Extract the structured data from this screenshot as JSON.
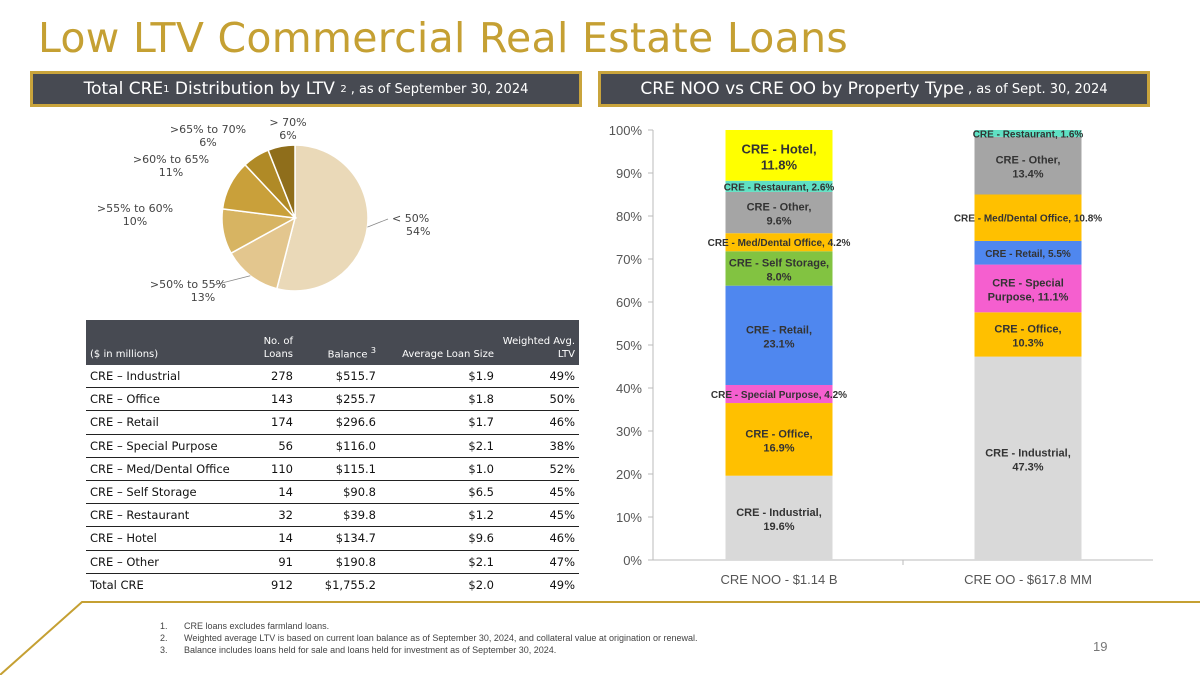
{
  "title": "Low LTV Commercial Real Estate Loans",
  "left_header": {
    "text": "Total CRE",
    "sup1": "1",
    "text2": " Distribution by LTV ",
    "sup2": "2",
    "suffix": ", as of September 30, 2024"
  },
  "right_header": {
    "text": "CRE NOO vs CRE OO by Property Type",
    "suffix": ", as of Sept.  30, 2024"
  },
  "colors": {
    "gold": "#c5a033",
    "header_bg": "#474a52"
  },
  "chart_data": [
    {
      "type": "pie",
      "slices": [
        {
          "label": "< 50%",
          "pct_label": "54%",
          "value": 54,
          "color": "#ead9b8"
        },
        {
          "label": ">50% to 55%",
          "pct_label": "13%",
          "value": 13,
          "color": "#e3c68e"
        },
        {
          "label": ">55% to 60%",
          "pct_label": "10%",
          "value": 10,
          "color": "#d7b462"
        },
        {
          "label": ">60% to 65%",
          "pct_label": "11%",
          "value": 11,
          "color": "#c9a03a"
        },
        {
          "label": ">65% to 70%",
          "pct_label": "6%",
          "value": 6,
          "color": "#b08a26"
        },
        {
          "label": "> 70%",
          "pct_label": "6%",
          "value": 6,
          "color": "#8f6e1b"
        }
      ]
    },
    {
      "type": "bar",
      "stacked": true,
      "categories": [
        "CRE NOO - $1.14 B",
        "CRE OO - $617.8 MM"
      ],
      "ylim": [
        0,
        100
      ],
      "yticks": [
        "0%",
        "10%",
        "20%",
        "30%",
        "40%",
        "50%",
        "60%",
        "70%",
        "80%",
        "90%",
        "100%"
      ],
      "bars": [
        [
          {
            "label": "CRE - Industrial,",
            "pct": "19.6%",
            "value": 19.6,
            "color": "#d9d9d9",
            "style": "two"
          },
          {
            "label": "CRE - Office,",
            "pct": "16.9%",
            "value": 16.9,
            "color": "#ffc000",
            "style": "two"
          },
          {
            "label": "CRE - Special Purpose, 4.2%",
            "value": 4.2,
            "color": "#f55fcf",
            "style": "one"
          },
          {
            "label": "CRE - Retail,",
            "pct": "23.1%",
            "value": 23.1,
            "color": "#4f87ef",
            "style": "two"
          },
          {
            "label": "CRE - Self Storage,",
            "pct": "8.0%",
            "value": 8.0,
            "color": "#82c341",
            "style": "two"
          },
          {
            "label": "CRE - Med/Dental Office, 4.2%",
            "value": 4.2,
            "color": "#ffc000",
            "style": "one"
          },
          {
            "label": "CRE - Other,",
            "pct": "9.6%",
            "value": 9.6,
            "color": "#a5a5a5",
            "style": "two"
          },
          {
            "label": "CRE - Restaurant, 2.6%",
            "value": 2.6,
            "color": "#5fe0c3",
            "style": "one"
          },
          {
            "label": "CRE - Hotel,",
            "pct": "11.8%",
            "value": 11.8,
            "color": "#ffff00",
            "style": "hotel"
          }
        ],
        [
          {
            "label": "CRE - Industrial,",
            "pct": "47.3%",
            "value": 47.3,
            "color": "#d9d9d9",
            "style": "two"
          },
          {
            "label": "CRE - Office,",
            "pct": "10.3%",
            "value": 10.3,
            "color": "#ffc000",
            "style": "two"
          },
          {
            "label": "CRE - Special",
            "pct": "Purpose, 11.1%",
            "value": 11.1,
            "color": "#f55fcf",
            "style": "two"
          },
          {
            "label": "CRE - Retail, 5.5%",
            "value": 5.5,
            "color": "#4f87ef",
            "style": "one"
          },
          {
            "label": "CRE - Med/Dental Office, 10.8%",
            "value": 10.8,
            "color": "#ffc000",
            "style": "one"
          },
          {
            "label": "CRE - Other,",
            "pct": "13.4%",
            "value": 13.4,
            "color": "#a5a5a5",
            "style": "two"
          },
          {
            "label": "CRE - Restaurant, 1.6%",
            "value": 1.6,
            "color": "#5fe0c3",
            "style": "one"
          }
        ]
      ]
    },
    {
      "type": "table",
      "header": [
        "($ in millions)",
        "No. of Loans",
        "Balance 3",
        "Average Loan Size",
        "Weighted Avg. LTV"
      ],
      "rows": [
        [
          "CRE – Industrial",
          "278",
          "$515.7",
          "$1.9",
          "49%"
        ],
        [
          "CRE – Office",
          "143",
          "$255.7",
          "$1.8",
          "50%"
        ],
        [
          "CRE – Retail",
          "174",
          "$296.6",
          "$1.7",
          "46%"
        ],
        [
          "CRE – Special Purpose",
          "56",
          "$116.0",
          "$2.1",
          "38%"
        ],
        [
          "CRE – Med/Dental Office",
          "110",
          "$115.1",
          "$1.0",
          "52%"
        ],
        [
          "CRE – Self Storage",
          "14",
          "$90.8",
          "$6.5",
          "45%"
        ],
        [
          "CRE – Restaurant",
          "32",
          "$39.8",
          "$1.2",
          "45%"
        ],
        [
          "CRE – Hotel",
          "14",
          "$134.7",
          "$9.6",
          "46%"
        ],
        [
          "CRE – Other",
          "91",
          "$190.8",
          "$2.1",
          "47%"
        ],
        [
          "Total CRE",
          "912",
          "$1,755.2",
          "$2.0",
          "49%"
        ]
      ]
    }
  ],
  "table_header": {
    "col0": "($ in millions)",
    "col1a": "No. of",
    "col1b": "Loans",
    "col2": "Balance",
    "col2sup": "3",
    "col3": "Average Loan Size",
    "col4a": "Weighted Avg.",
    "col4b": "LTV"
  },
  "footnotes": [
    {
      "num": "1.",
      "text": "CRE loans excludes farmland loans."
    },
    {
      "num": "2.",
      "text": "Weighted average LTV is based on current loan balance as of September 30, 2024, and collateral value at origination or renewal."
    },
    {
      "num": "3.",
      "text": "Balance includes loans held for sale and loans held for investment as of September 30, 2024."
    }
  ],
  "page_number": "19"
}
